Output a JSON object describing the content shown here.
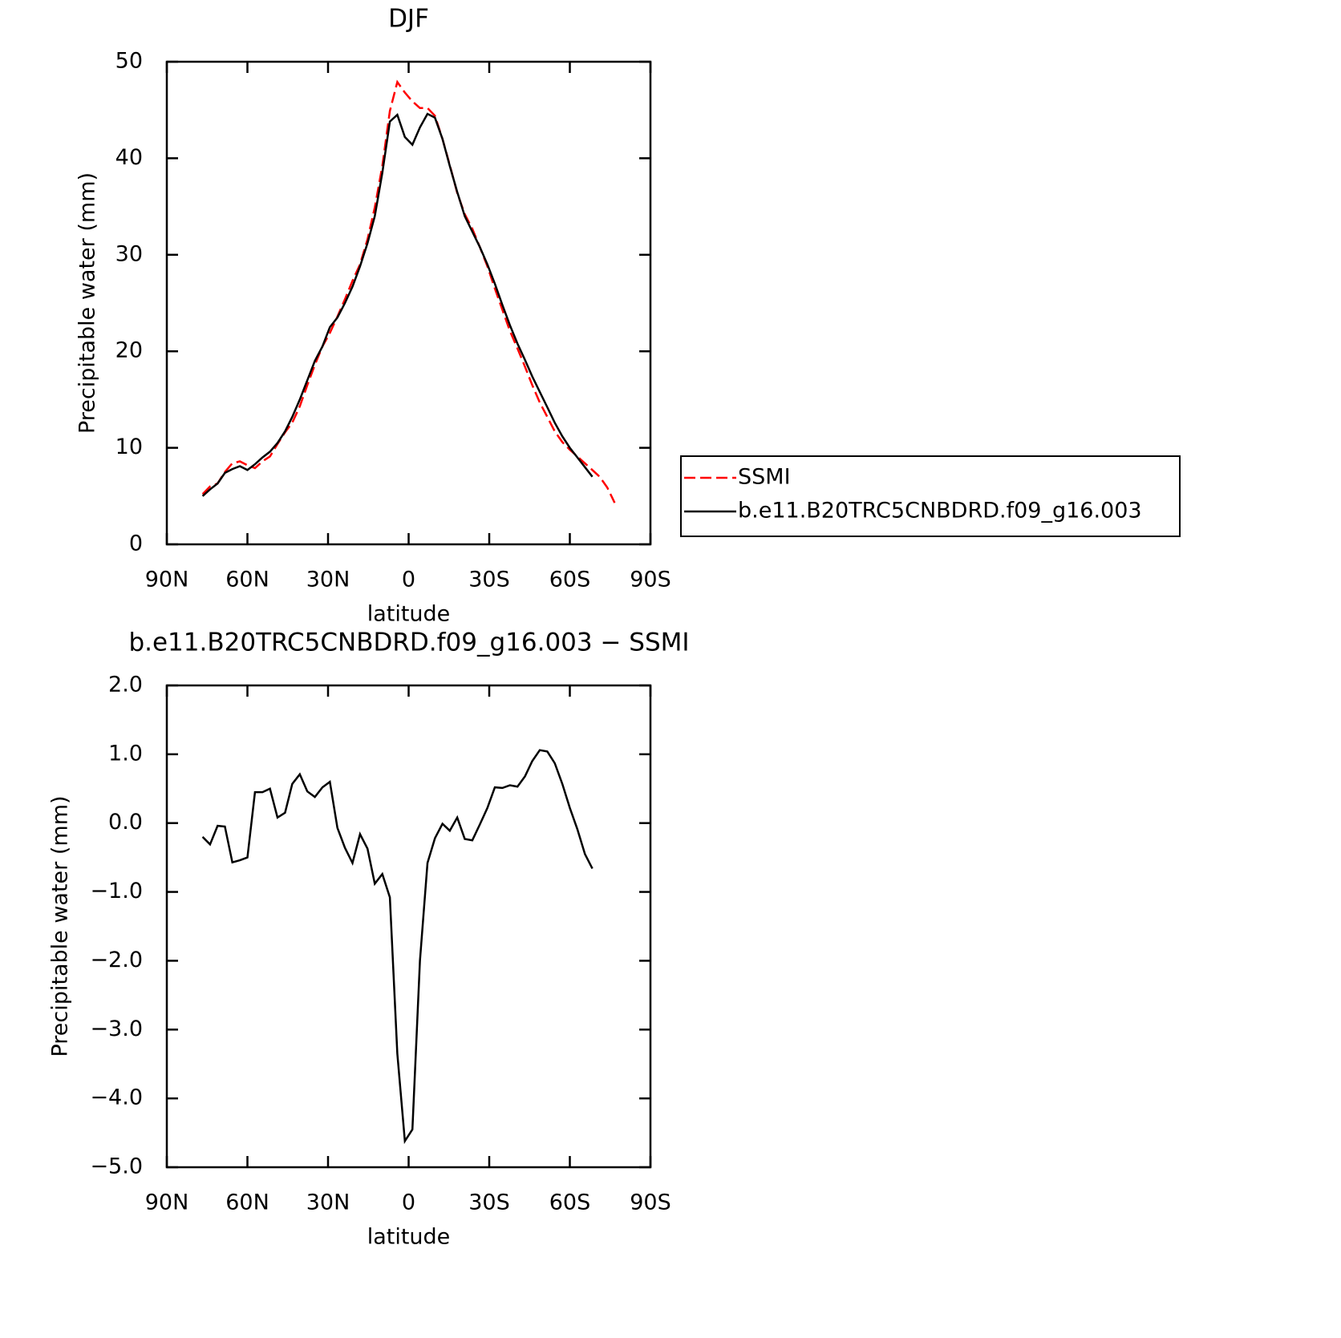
{
  "chart_data": [
    {
      "type": "line",
      "title": "DJF",
      "xlabel": "latitude",
      "ylabel": "Precipitable water (mm)",
      "x": [
        76.7,
        73.9,
        71.1,
        68.4,
        65.6,
        62.8,
        60.0,
        57.2,
        54.4,
        51.6,
        48.8,
        46.0,
        43.3,
        40.5,
        37.7,
        34.9,
        32.1,
        29.3,
        26.5,
        23.7,
        20.9,
        18.1,
        15.3,
        12.6,
        9.8,
        7.0,
        4.2,
        1.4,
        -1.4,
        -4.2,
        -7.0,
        -9.8,
        -12.6,
        -15.3,
        -18.1,
        -20.9,
        -23.7,
        -26.5,
        -29.3,
        -32.1,
        -34.9,
        -37.7,
        -40.5,
        -43.3,
        -46.0,
        -48.8,
        -51.6,
        -54.4,
        -57.2,
        -60.0,
        -62.8,
        -65.6,
        -68.4,
        -71.1,
        -73.9,
        -76.7
      ],
      "xlim": [
        90,
        -90
      ],
      "xticks": [
        {
          "value": 90,
          "label": "90N"
        },
        {
          "value": 60,
          "label": "60N"
        },
        {
          "value": 30,
          "label": "30N"
        },
        0,
        {
          "value": -30,
          "label": "30S"
        },
        {
          "value": -60,
          "label": "60S"
        },
        {
          "value": -90,
          "label": "90S"
        }
      ],
      "ylim": [
        0,
        50
      ],
      "yticks": [
        0,
        10,
        20,
        30,
        40,
        50
      ],
      "legend": "right",
      "series": [
        {
          "name": "SSMI",
          "color": "#ff0000",
          "linestyle": "dashed",
          "values": [
            5.2,
            6.0,
            6.3,
            7.5,
            8.4,
            8.6,
            8.2,
            7.9,
            8.6,
            9.1,
            10.4,
            11.6,
            12.6,
            14.3,
            16.5,
            18.6,
            20.5,
            21.9,
            23.6,
            25.4,
            27.3,
            29.0,
            31.6,
            34.9,
            39.2,
            44.9,
            47.9,
            46.8,
            45.9,
            45.2,
            45.2,
            44.4,
            42.0,
            39.3,
            36.4,
            34.2,
            32.7,
            30.8,
            28.8,
            26.5,
            24.3,
            22.1,
            20.3,
            18.4,
            16.5,
            14.7,
            13.2,
            11.7,
            10.6,
            9.8,
            9.1,
            8.4,
            7.7,
            7.0,
            5.9,
            4.3
          ]
        },
        {
          "name": "b.e11.B20TRC5CNBDRD.f09_g16.003",
          "color": "#000000",
          "linestyle": "solid",
          "values": [
            5.0,
            5.7,
            6.3,
            7.4,
            7.8,
            8.1,
            7.7,
            8.3,
            9.0,
            9.6,
            10.5,
            11.7,
            13.2,
            15.0,
            17.0,
            19.0,
            20.5,
            22.5,
            23.5,
            25.0,
            26.7,
            28.8,
            31.2,
            34.0,
            38.5,
            43.8,
            44.5,
            42.2,
            41.4,
            43.2,
            44.6,
            44.2,
            42.0,
            39.2,
            36.5,
            34.0,
            32.4,
            30.8,
            29.0,
            27.0,
            24.8,
            22.7,
            20.8,
            19.1,
            17.4,
            15.8,
            14.2,
            12.6,
            11.2,
            10.0,
            9.0,
            8.0,
            7.0,
            null,
            null,
            null
          ]
        }
      ]
    },
    {
      "type": "line",
      "title": "b.e11.B20TRC5CNBDRD.f09_g16.003 − SSMI",
      "xlabel": "latitude",
      "ylabel": "Precipitable water (mm)",
      "x": [
        76.7,
        73.9,
        71.1,
        68.4,
        65.6,
        62.8,
        60.0,
        57.2,
        54.4,
        51.6,
        48.8,
        46.0,
        43.3,
        40.5,
        37.7,
        34.9,
        32.1,
        29.3,
        26.5,
        23.7,
        20.9,
        18.1,
        15.3,
        12.6,
        9.8,
        7.0,
        4.2,
        1.4,
        -1.4,
        -4.2,
        -7.0,
        -9.8,
        -12.6,
        -15.3,
        -18.1,
        -20.9,
        -23.7,
        -26.5,
        -29.3,
        -32.1,
        -34.9,
        -37.7,
        -40.5,
        -43.3,
        -46.0,
        -48.8,
        -51.6,
        -54.4,
        -57.2,
        -60.0,
        -62.8,
        -65.6,
        -68.4,
        -71.1,
        -73.9,
        -76.7
      ],
      "xlim": [
        90,
        -90
      ],
      "xticks": [
        {
          "value": 90,
          "label": "90N"
        },
        {
          "value": 60,
          "label": "60N"
        },
        {
          "value": 30,
          "label": "30N"
        },
        0,
        {
          "value": -30,
          "label": "30S"
        },
        {
          "value": -60,
          "label": "60S"
        },
        {
          "value": -90,
          "label": "90S"
        }
      ],
      "ylim": [
        -5,
        2
      ],
      "yticks": [
        {
          "value": -5,
          "label": "−5.0"
        },
        {
          "value": -4,
          "label": "−4.0"
        },
        {
          "value": -3,
          "label": "−3.0"
        },
        {
          "value": -2,
          "label": "−2.0"
        },
        {
          "value": -1,
          "label": "−1.0"
        },
        {
          "value": 0,
          "label": "0.0"
        },
        {
          "value": 1,
          "label": "1.0"
        },
        {
          "value": 2,
          "label": "2.0"
        }
      ],
      "series": [
        {
          "color": "#000000",
          "linestyle": "solid",
          "values": [
            -0.2,
            -0.31,
            -0.04,
            -0.05,
            -0.57,
            -0.54,
            -0.5,
            0.45,
            0.45,
            0.5,
            0.08,
            0.15,
            0.57,
            0.71,
            0.46,
            0.38,
            0.52,
            0.6,
            -0.07,
            -0.36,
            -0.58,
            -0.16,
            -0.37,
            -0.88,
            -0.74,
            -1.08,
            -3.35,
            -4.62,
            -4.45,
            -2.0,
            -0.58,
            -0.22,
            -0.01,
            -0.11,
            0.08,
            -0.23,
            -0.25,
            -0.02,
            0.22,
            0.52,
            0.51,
            0.55,
            0.53,
            0.68,
            0.9,
            1.06,
            1.04,
            0.87,
            0.57,
            0.22,
            -0.09,
            -0.45,
            -0.66,
            null,
            null,
            null
          ]
        }
      ]
    }
  ]
}
